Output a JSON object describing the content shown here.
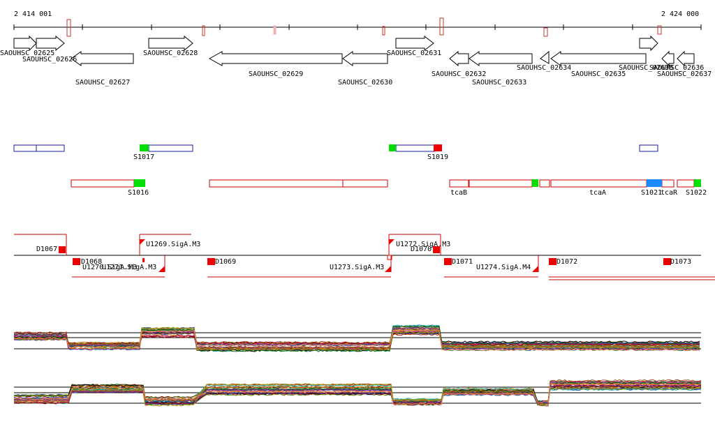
{
  "ruler": {
    "start_label": "2 414 001",
    "end_label": "2 424 000"
  },
  "colors": {
    "gene_outline": "#000000",
    "feature_blue": "#1a1aa0",
    "feature_red": "#cc0000",
    "marker_green": "#00dd00",
    "marker_red": "#ee0000",
    "marker_blue": "#1a8cff"
  },
  "genes": [
    {
      "name": "SAOUHSC_02625"
    },
    {
      "name": "SAOUHSC_02626"
    },
    {
      "name": "SAOUHSC_02627"
    },
    {
      "name": "SAOUHSC_02628"
    },
    {
      "name": "SAOUHSC_02629"
    },
    {
      "name": "SAOUHSC_02630"
    },
    {
      "name": "SAOUHSC_02631"
    },
    {
      "name": "SAOUHSC_02632"
    },
    {
      "name": "SAOUHSC_02633"
    },
    {
      "name": "SAOUHSC_02634"
    },
    {
      "name": "SAOUHSC_02635"
    },
    {
      "name": "SAOUHSC_02636"
    },
    {
      "name": "SAOUHSC_02637"
    },
    {
      "name": "SAOUHSC_02638"
    }
  ],
  "blue_features": [
    {
      "label": "S1017"
    },
    {
      "label": "S1019"
    }
  ],
  "red_features": [
    {
      "label": "S1016"
    },
    {
      "label": "tcaB"
    },
    {
      "label": "tcaA"
    },
    {
      "label": "S1021"
    },
    {
      "label": "tcaR"
    },
    {
      "label": "S1022"
    }
  ],
  "regulation": [
    {
      "label": "D1067"
    },
    {
      "label": "D1068"
    },
    {
      "label": "U1270.SigA.M3"
    },
    {
      "label": "U1271.SigA.M3"
    },
    {
      "label": "U1269.SigA.M3"
    },
    {
      "label": "D1069"
    },
    {
      "label": "U1273.SigA.M3"
    },
    {
      "label": "U1272.SigA.M3"
    },
    {
      "label": "D1070"
    },
    {
      "label": "D1071"
    },
    {
      "label": "U1274.SigA.M4"
    },
    {
      "label": "D1072"
    },
    {
      "label": "D1073"
    }
  ]
}
